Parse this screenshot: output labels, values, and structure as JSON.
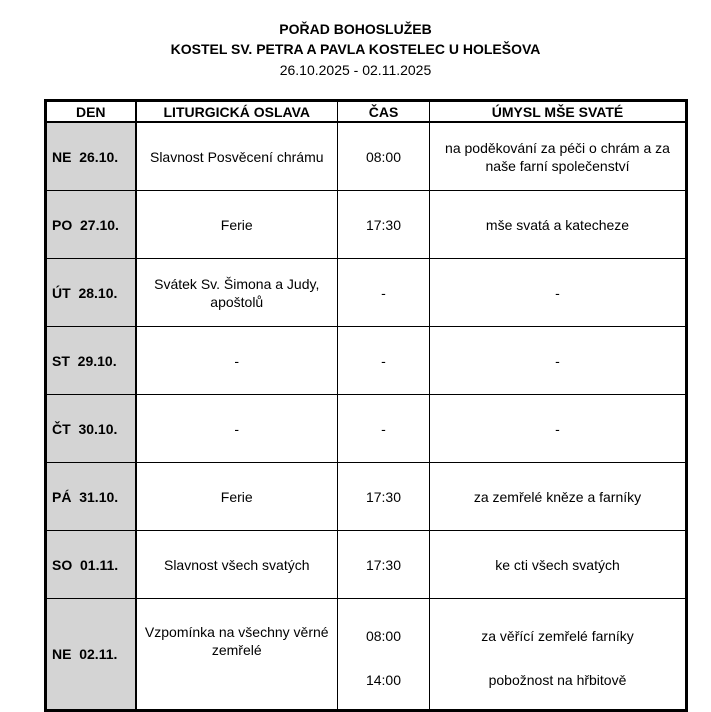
{
  "header": {
    "title": "POŘAD BOHOSLUŽEB",
    "church": "KOSTEL SV. PETRA A PAVLA KOSTELEC U HOLEŠOVA",
    "date_range": "26.10.2025 - 02.11.2025"
  },
  "table": {
    "columns": [
      "DEN",
      "LITURGICKÁ OSLAVA",
      "ČAS",
      "ÚMYSL MŠE SVATÉ"
    ],
    "rows": [
      {
        "day": "NE  26.10.",
        "celebration": "Slavnost Posvěcení chrámu",
        "times": [
          "08:00"
        ],
        "intentions": [
          "na poděkování za péči o chrám a za naše farní společenství"
        ]
      },
      {
        "day": "PO  27.10.",
        "celebration": "Ferie",
        "times": [
          "17:30"
        ],
        "intentions": [
          "mše svatá a katecheze"
        ]
      },
      {
        "day": "ÚT  28.10.",
        "celebration": "Svátek Sv. Šimona a Judy, apoštolů",
        "times": [
          "-"
        ],
        "intentions": [
          "-"
        ]
      },
      {
        "day": "ST  29.10.",
        "celebration": "-",
        "times": [
          "-"
        ],
        "intentions": [
          "-"
        ]
      },
      {
        "day": "ČT  30.10.",
        "celebration": "-",
        "times": [
          "-"
        ],
        "intentions": [
          "-"
        ]
      },
      {
        "day": "PÁ  31.10.",
        "celebration": "Ferie",
        "times": [
          "17:30"
        ],
        "intentions": [
          "za zemřelé kněze a farníky"
        ]
      },
      {
        "day": "SO  01.11.",
        "celebration": "Slavnost všech svatých",
        "times": [
          "17:30"
        ],
        "intentions": [
          "ke cti všech svatých"
        ]
      },
      {
        "day": "NE  02.11.",
        "celebration": "Vzpomínka na všechny věrné zemřelé",
        "times": [
          "08:00",
          "14:00"
        ],
        "intentions": [
          "za věřící zemřelé farníky",
          "pobožnost na hřbitově"
        ]
      }
    ]
  }
}
